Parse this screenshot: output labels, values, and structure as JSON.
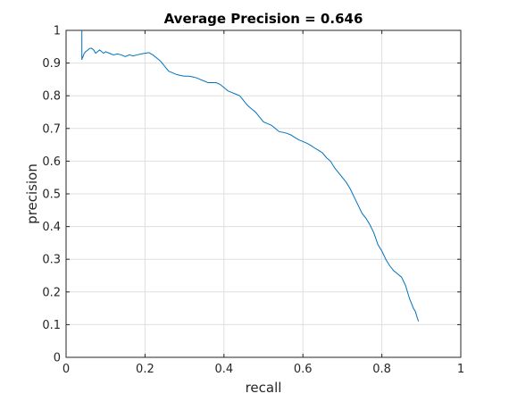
{
  "chart_data": {
    "type": "line",
    "title": "Average Precision = 0.646",
    "xlabel": "recall",
    "ylabel": "precision",
    "xlim": [
      0,
      1
    ],
    "ylim": [
      0,
      1
    ],
    "xticks": [
      "0",
      "0.2",
      "0.4",
      "0.6",
      "0.8",
      "1"
    ],
    "yticks": [
      "0",
      "0.1",
      "0.2",
      "0.3",
      "0.4",
      "0.5",
      "0.6",
      "0.7",
      "0.8",
      "0.9",
      "1"
    ],
    "grid": true,
    "line_color": "#0072BD",
    "series": [
      {
        "x": [
          0.04,
          0.04,
          0.041,
          0.043,
          0.046,
          0.05,
          0.055,
          0.06,
          0.065,
          0.07,
          0.075,
          0.08,
          0.085,
          0.09,
          0.095,
          0.1,
          0.11,
          0.12,
          0.13,
          0.14,
          0.15,
          0.16,
          0.17,
          0.18,
          0.19,
          0.2,
          0.21,
          0.215,
          0.22,
          0.23,
          0.24,
          0.25,
          0.26,
          0.27,
          0.28,
          0.29,
          0.3,
          0.31,
          0.32,
          0.33,
          0.34,
          0.35,
          0.36,
          0.37,
          0.38,
          0.39,
          0.4,
          0.41,
          0.42,
          0.43,
          0.44,
          0.45,
          0.46,
          0.47,
          0.48,
          0.49,
          0.5,
          0.51,
          0.52,
          0.53,
          0.54,
          0.55,
          0.56,
          0.57,
          0.58,
          0.59,
          0.6,
          0.61,
          0.62,
          0.63,
          0.64,
          0.65,
          0.66,
          0.67,
          0.68,
          0.69,
          0.7,
          0.71,
          0.72,
          0.73,
          0.74,
          0.75,
          0.76,
          0.77,
          0.78,
          0.79,
          0.8,
          0.81,
          0.82,
          0.83,
          0.84,
          0.85,
          0.86,
          0.87,
          0.875,
          0.88,
          0.885,
          0.89,
          0.893
        ],
        "y": [
          1.0,
          0.91,
          0.915,
          0.92,
          0.93,
          0.935,
          0.94,
          0.945,
          0.945,
          0.94,
          0.93,
          0.935,
          0.94,
          0.935,
          0.93,
          0.935,
          0.93,
          0.925,
          0.928,
          0.925,
          0.92,
          0.925,
          0.922,
          0.925,
          0.928,
          0.93,
          0.932,
          0.928,
          0.925,
          0.915,
          0.905,
          0.89,
          0.875,
          0.87,
          0.865,
          0.862,
          0.86,
          0.86,
          0.858,
          0.855,
          0.85,
          0.845,
          0.84,
          0.84,
          0.84,
          0.835,
          0.825,
          0.815,
          0.81,
          0.805,
          0.8,
          0.785,
          0.77,
          0.76,
          0.75,
          0.735,
          0.72,
          0.715,
          0.71,
          0.7,
          0.69,
          0.688,
          0.685,
          0.68,
          0.672,
          0.665,
          0.66,
          0.655,
          0.648,
          0.64,
          0.633,
          0.625,
          0.61,
          0.6,
          0.58,
          0.565,
          0.55,
          0.535,
          0.515,
          0.49,
          0.465,
          0.44,
          0.425,
          0.405,
          0.38,
          0.345,
          0.325,
          0.3,
          0.28,
          0.265,
          0.255,
          0.245,
          0.22,
          0.18,
          0.165,
          0.15,
          0.14,
          0.12,
          0.11
        ]
      }
    ]
  }
}
